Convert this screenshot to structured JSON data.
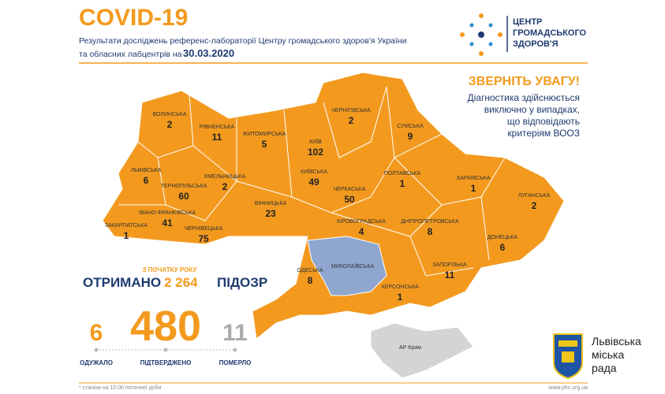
{
  "header": {
    "title": "COVID-19",
    "subtitle_line1": "Результати досліджень референс-лабораторії Центру громадського здоров'я України",
    "subtitle_line2": "та обласних лабцентрів на",
    "date": "30.03.2020"
  },
  "logo": {
    "line1": "ЦЕНТР",
    "line2": "ГРОМАДСЬКОГО",
    "line3": "ЗДОРОВ'Я"
  },
  "notice": {
    "title": "ЗВЕРНІТЬ УВАГУ!",
    "lines": [
      "Діагностика здійснюється",
      "виключно у випадках,",
      "що відповідають",
      "критеріям ВООЗ"
    ]
  },
  "regions": [
    {
      "name": "ВОЛИНСЬКА",
      "value": 2
    },
    {
      "name": "РІВНЕНСЬКА",
      "value": 11
    },
    {
      "name": "ЖИТОМИРСЬКА",
      "value": 5
    },
    {
      "name": "КИЇВ",
      "value": 102
    },
    {
      "name": "ЧЕРНІГІВСЬКА",
      "value": 2
    },
    {
      "name": "СУМСЬКА",
      "value": 9
    },
    {
      "name": "ЛЬВІВСЬКА",
      "value": 6
    },
    {
      "name": "ТЕРНОПІЛЬСЬКА",
      "value": 60
    },
    {
      "name": "ХМЕЛЬНИЦЬКА",
      "value": 2
    },
    {
      "name": "КИЇВСЬКА",
      "value": 49
    },
    {
      "name": "ПОЛТАВСЬКА",
      "value": 1
    },
    {
      "name": "ХАРКІВСЬКА",
      "value": 1
    },
    {
      "name": "ЛУГАНСЬКА",
      "value": 2
    },
    {
      "name": "ІВАНО-ФРАНКІВСЬКА",
      "value": 41
    },
    {
      "name": "ЗАКАРПАТСЬКА",
      "value": 1
    },
    {
      "name": "ЧЕРНІВЕЦЬКА",
      "value": 75
    },
    {
      "name": "ВІННИЦЬКА",
      "value": 23
    },
    {
      "name": "ЧЕРКАСЬКА",
      "value": 50
    },
    {
      "name": "КІРОВОГРАДСЬКА",
      "value": 4
    },
    {
      "name": "ДНІПРОПЕТРОВСЬКА",
      "value": 8
    },
    {
      "name": "ДОНЕЦЬКА",
      "value": 6
    },
    {
      "name": "ЗАПОРІЗЬКА",
      "value": 11
    },
    {
      "name": "ХЕРСОНСЬКА",
      "value": 1
    },
    {
      "name": "МИКОЛАЇВСЬКА"
    },
    {
      "name": "ОДЕСЬКА",
      "value": 8
    },
    {
      "name": "АР Крим"
    }
  ],
  "summary": {
    "since": "З ПОЧАТКУ РОКУ",
    "received": "ОТРИМАНО",
    "suspected_count": "2 264",
    "suspected": "ПІДОЗР",
    "stats": [
      {
        "value": 6,
        "label": "ОДУЖАЛО"
      },
      {
        "value": 480,
        "label": "ПІДТВЕРДЖЕНО"
      },
      {
        "value": 11,
        "label": "ПОМЕРЛО"
      }
    ]
  },
  "footer": {
    "note": "* станом на 10:00 поточної доби",
    "url": "www.phc.org.ua"
  },
  "city": {
    "line1": "Львівська",
    "line2": "міська",
    "line3": "рада"
  }
}
